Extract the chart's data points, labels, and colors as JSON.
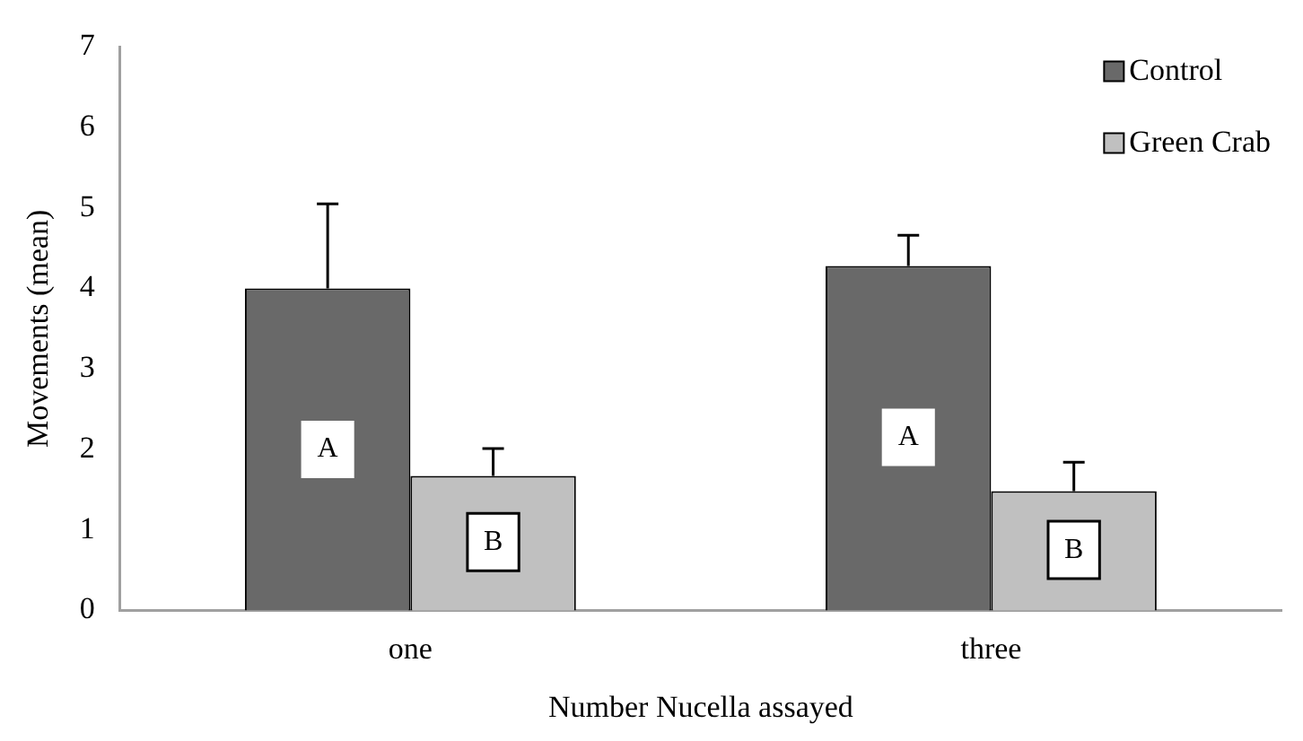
{
  "chart_data": {
    "type": "bar",
    "xlabel": "Number Nucella assayed",
    "ylabel": "Movements (mean)",
    "categories": [
      "one",
      "three"
    ],
    "series": [
      {
        "name": "Control",
        "color": "#696969",
        "values": [
          4.0,
          4.28
        ],
        "errors": [
          [
            4.0,
            5.05
          ],
          [
            4.28,
            4.66
          ]
        ]
      },
      {
        "name": "Green Crab",
        "color": "#c0c0c0",
        "values": [
          1.67,
          1.48
        ],
        "errors": [
          [
            1.67,
            2.01
          ],
          [
            1.48,
            1.84
          ]
        ]
      }
    ],
    "ylim": [
      0,
      7
    ],
    "yticks": [
      0,
      1,
      2,
      3,
      4,
      5,
      6,
      7
    ],
    "grid": false,
    "legend": "top right",
    "annotations": [
      {
        "text": "A",
        "x": "one",
        "y": 2.0
      },
      {
        "text": "B",
        "x": "one",
        "y": 0.85
      },
      {
        "text": "A",
        "x": "three",
        "y": 2.15
      },
      {
        "text": "B",
        "x": "three",
        "y": 0.75
      }
    ]
  }
}
